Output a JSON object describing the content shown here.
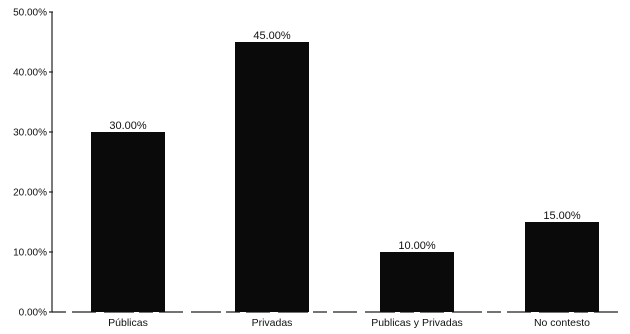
{
  "chart_data": {
    "type": "bar",
    "categories": [
      "Públicas",
      "Privadas",
      "Publicas y Privadas",
      "No contesto"
    ],
    "values": [
      30,
      45,
      10,
      15
    ],
    "data_labels": [
      "30.00%",
      "45.00%",
      "10.00%",
      "15.00%"
    ],
    "ylim": [
      0,
      50
    ],
    "yticks": [
      0,
      10,
      20,
      30,
      40,
      50
    ],
    "ytick_labels": [
      "0.00%",
      "10.00%",
      "20.00%",
      "30.00%",
      "40.00%",
      "50.00%"
    ],
    "title": "",
    "xlabel": "",
    "ylabel": "",
    "grid": false,
    "legend": "none",
    "bar_color": "#0a0a0a"
  }
}
